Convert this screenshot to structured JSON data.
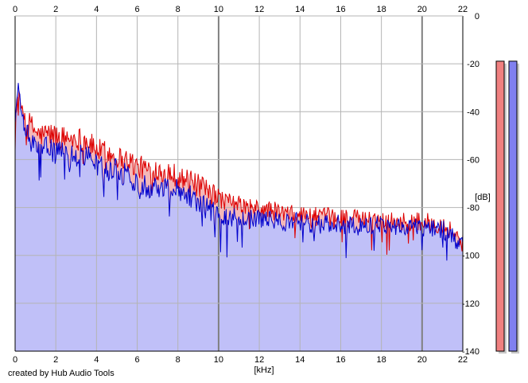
{
  "chart_data": {
    "type": "area",
    "xlabel": "[kHz]",
    "ylabel": "[dB]",
    "xlim": [
      0,
      22
    ],
    "ylim": [
      -140,
      0
    ],
    "x_ticks": [
      0,
      2,
      4,
      6,
      8,
      10,
      12,
      14,
      16,
      18,
      20,
      22
    ],
    "y_ticks": [
      0,
      -20,
      -40,
      -60,
      -80,
      -100,
      -120,
      -140
    ],
    "grid": true,
    "series": [
      {
        "color": "#dd0000",
        "fill": "#f4b8b8",
        "x": [
          0,
          0.15,
          0.3,
          0.5,
          0.8,
          1.2,
          1.6,
          2.0,
          2.5,
          3.0,
          3.5,
          4.0,
          4.5,
          5.0,
          5.5,
          6.0,
          6.5,
          7.0,
          7.5,
          8.0,
          8.5,
          9.0,
          9.5,
          10.0,
          10.5,
          11.0,
          11.5,
          12.0,
          12.5,
          13.0,
          13.5,
          14.0,
          15.0,
          16.0,
          17.0,
          18.0,
          19.0,
          20.0,
          21.0,
          21.5,
          22.0
        ],
        "values": [
          -45,
          -31,
          -38,
          -43,
          -46,
          -50,
          -49,
          -50,
          -51,
          -51,
          -52,
          -56,
          -57,
          -59,
          -60,
          -63,
          -64,
          -64,
          -65,
          -67,
          -69,
          -71,
          -74,
          -76,
          -78,
          -79,
          -80,
          -81,
          -81,
          -82,
          -83,
          -83,
          -84,
          -84,
          -85,
          -85,
          -86,
          -86,
          -87,
          -90,
          -95
        ]
      },
      {
        "color": "#0000cc",
        "fill": "#c0c0f8",
        "x": [
          0,
          0.15,
          0.3,
          0.5,
          0.8,
          1.2,
          1.6,
          2.0,
          2.5,
          3.0,
          3.5,
          4.0,
          4.5,
          5.0,
          5.5,
          6.0,
          6.5,
          7.0,
          7.5,
          8.0,
          8.5,
          9.0,
          9.5,
          10.0,
          10.5,
          11.0,
          11.5,
          12.0,
          12.5,
          13.0,
          13.5,
          14.0,
          15.0,
          16.0,
          17.0,
          18.0,
          19.0,
          20.0,
          21.0,
          21.5,
          22.0
        ],
        "values": [
          -44,
          -29,
          -39,
          -48,
          -53,
          -57,
          -55,
          -57,
          -58,
          -59,
          -58,
          -62,
          -64,
          -64,
          -67,
          -70,
          -71,
          -71,
          -72,
          -72,
          -74,
          -78,
          -81,
          -83,
          -84,
          -84,
          -85,
          -85,
          -85,
          -86,
          -86,
          -86,
          -87,
          -87,
          -88,
          -87,
          -88,
          -88,
          -89,
          -92,
          -96
        ]
      }
    ]
  },
  "meters": [
    {
      "color": "#f08080",
      "level": 0.865
    },
    {
      "color": "#8080f0",
      "level": 0.865
    }
  ],
  "credit": "created by Hub Audio Tools"
}
